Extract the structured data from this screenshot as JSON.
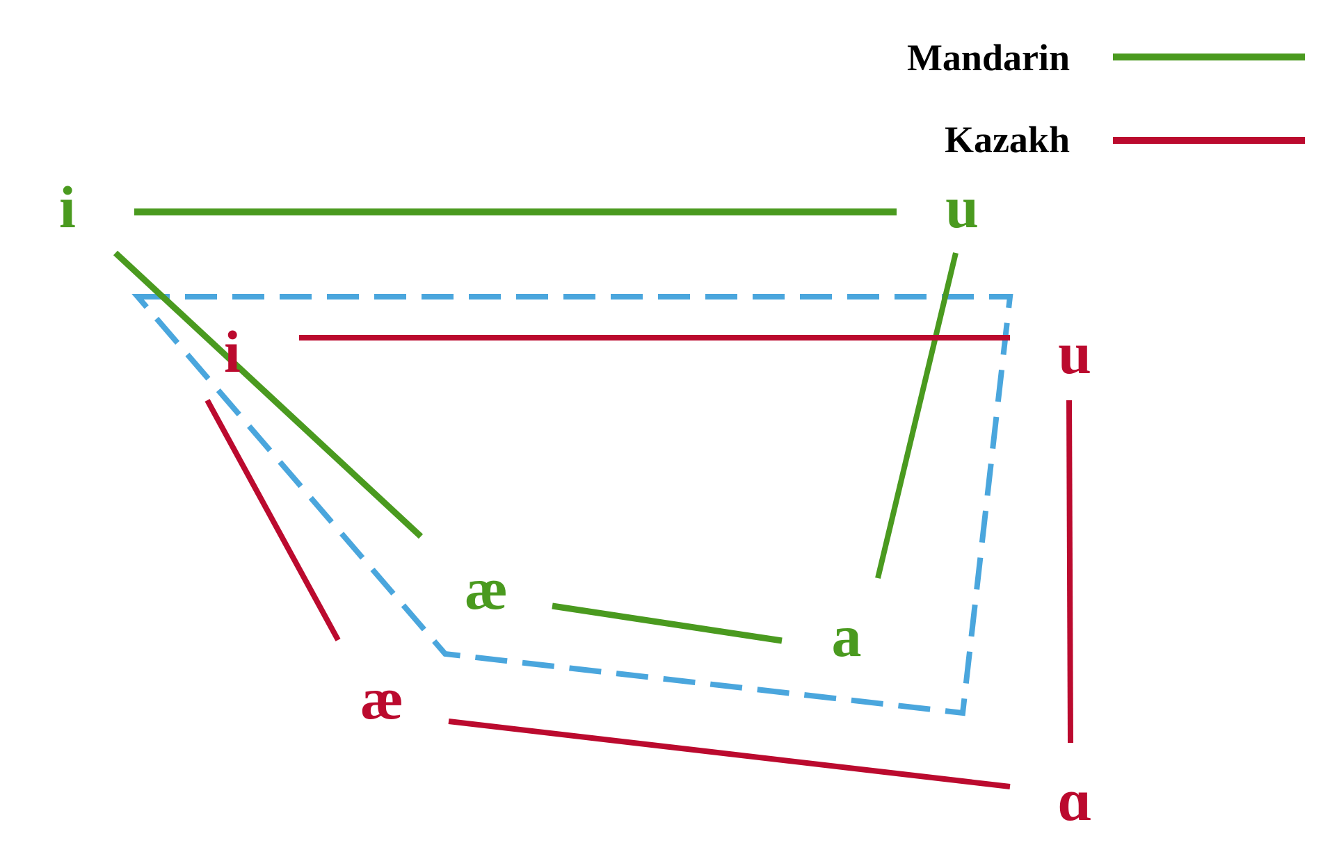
{
  "colors": {
    "mandarin": "#4a9a1f",
    "kazakh": "#bb0a2e",
    "overlap": "#4aa6dd",
    "background": "#ffffff"
  },
  "legend": {
    "mandarin_label": "Mandarin",
    "kazakh_label": "Kazakh"
  },
  "vowels": {
    "mandarin": {
      "i": "i",
      "u": "u",
      "ae": "æ",
      "a": "a"
    },
    "kazakh": {
      "i": "i",
      "u": "u",
      "ae": "æ",
      "a": "ɑ"
    }
  }
}
